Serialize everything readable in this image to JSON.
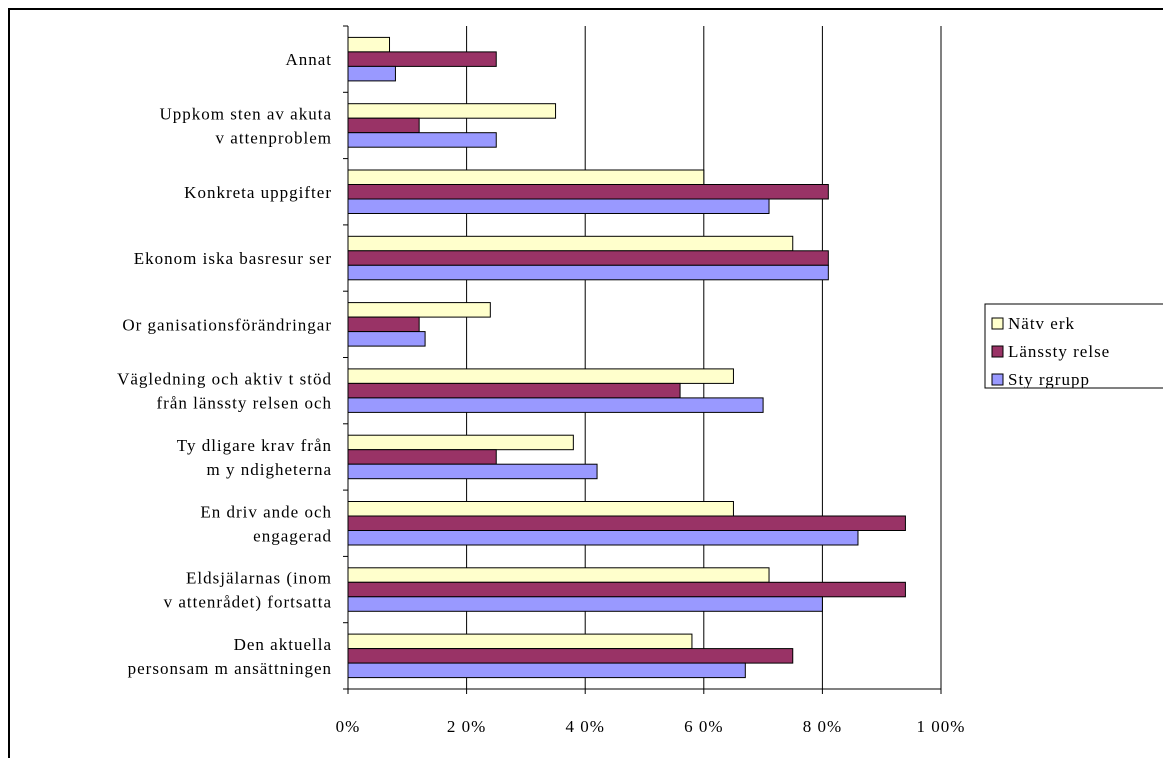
{
  "chart_data": {
    "type": "bar",
    "orientation": "horizontal",
    "categories": [
      [
        "Annat"
      ],
      [
        "Uppkom sten av akuta",
        "v attenproblem"
      ],
      [
        "Konkreta uppgifter"
      ],
      [
        "Ekonom iska basresur ser"
      ],
      [
        "Or ganisationsförändringar"
      ],
      [
        "Vägledning och aktiv t stöd",
        "från länssty relsen och"
      ],
      [
        "Ty dligare krav från",
        "m y ndigheterna"
      ],
      [
        "En driv ande och",
        "engagerad"
      ],
      [
        "Eldsjälarnas (inom",
        "v attenrådet) fortsatta"
      ],
      [
        "Den aktuella",
        "personsam m ansättningen"
      ]
    ],
    "series": [
      {
        "name": "Nätv erk",
        "color": "#ffffcc",
        "values": [
          7,
          35,
          60,
          75,
          24,
          65,
          38,
          65,
          71,
          58
        ]
      },
      {
        "name": "Länssty relse",
        "color": "#993366",
        "values": [
          25,
          12,
          81,
          81,
          12,
          56,
          25,
          94,
          94,
          75
        ]
      },
      {
        "name": "Sty rgrupp",
        "color": "#9999ff",
        "values": [
          8,
          25,
          71,
          81,
          13,
          70,
          42,
          86,
          80,
          67
        ]
      }
    ],
    "xlim": [
      0,
      100
    ],
    "xticks": [
      0,
      20,
      40,
      60,
      80,
      100
    ],
    "xtick_labels": [
      "0%",
      "2 0%",
      "4 0%",
      "6 0%",
      "8 0%",
      "1 00%"
    ],
    "grid": "vertical",
    "legend": "right",
    "title": "",
    "xlabel": "",
    "ylabel": ""
  }
}
